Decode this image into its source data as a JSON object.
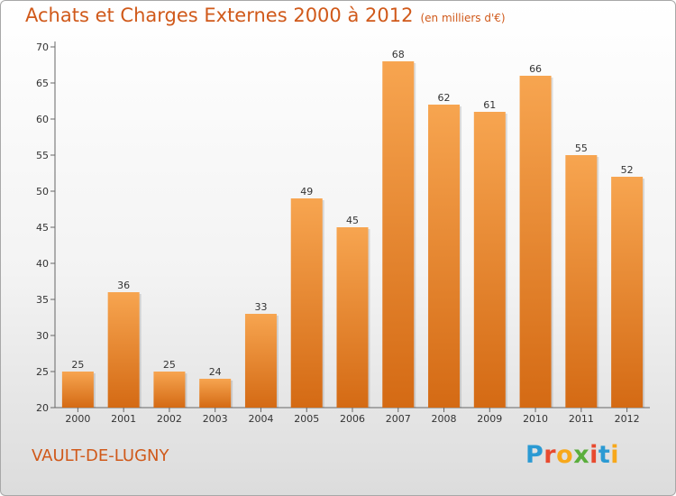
{
  "header": {
    "title": "Achats et Charges Externes 2000 à 2012",
    "unit": "(en milliers d'€)"
  },
  "footer": {
    "commune": "VAULT-DE-LUGNY",
    "logo": {
      "letters": [
        "P",
        "r",
        "o",
        "x",
        "i",
        "t",
        "i"
      ],
      "colors": [
        "#2b9ad3",
        "#e84a2f",
        "#f7a81b",
        "#5aae3c",
        "#e84a2f",
        "#2b9ad3",
        "#f7a81b"
      ]
    }
  },
  "chart_data": {
    "type": "bar",
    "title": "Achats et Charges Externes 2000 à 2012",
    "subtitle": "(en milliers d'€)",
    "categories": [
      "2000",
      "2001",
      "2002",
      "2003",
      "2004",
      "2005",
      "2006",
      "2007",
      "2008",
      "2009",
      "2010",
      "2011",
      "2012"
    ],
    "values": [
      25,
      36,
      25,
      24,
      33,
      49,
      45,
      68,
      62,
      61,
      66,
      55,
      52
    ],
    "ylim": [
      20,
      70
    ],
    "yticks": [
      20,
      25,
      30,
      35,
      40,
      45,
      50,
      55,
      60,
      65,
      70
    ],
    "grid": false,
    "colors": {
      "bar_top": "#f7a550",
      "bar_bottom": "#d46a14",
      "axis": "#666666"
    }
  }
}
